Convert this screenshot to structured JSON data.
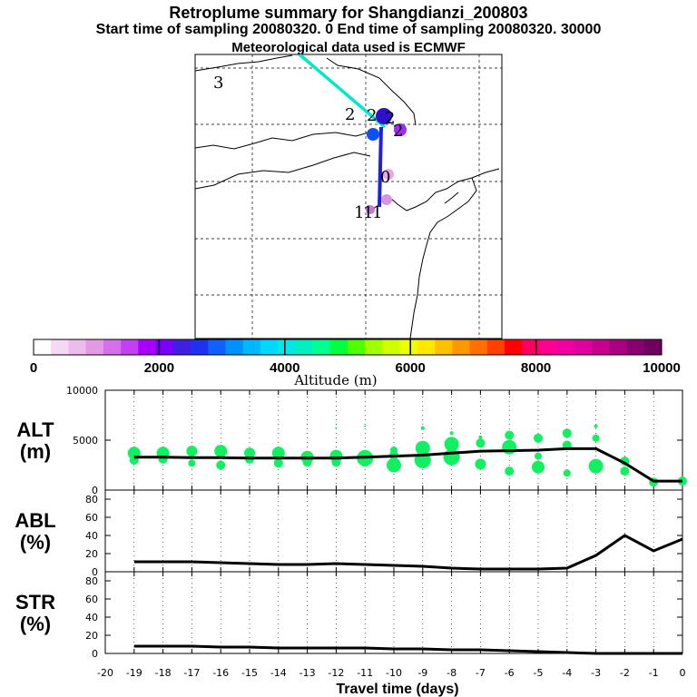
{
  "header": {
    "title": "Retroplume summary for Shangdianzi_200803",
    "sampling_line": "Start time of sampling 20080320.     0     End time of sampling 20080320. 30000",
    "met_line": "Meteorological data used is ECMWF"
  },
  "map": {
    "labels": [
      {
        "text": "3",
        "kind": "age"
      },
      {
        "text": "2",
        "kind": "age"
      },
      {
        "text": "2",
        "kind": "age"
      },
      {
        "text": "2",
        "kind": "age"
      },
      {
        "text": "2",
        "kind": "age"
      },
      {
        "text": "0",
        "kind": "age"
      },
      {
        "text": "1",
        "kind": "age"
      },
      {
        "text": "1",
        "kind": "age"
      },
      {
        "text": "1",
        "kind": "age"
      }
    ]
  },
  "colorbar": {
    "label": "Altitude (m)",
    "ticks": [
      "0",
      "2000",
      "4000",
      "6000",
      "8000",
      "10000"
    ],
    "colors": [
      "#ffffff",
      "#f5d8f5",
      "#eebbee",
      "#e399e3",
      "#d670e8",
      "#c140f0",
      "#a700ff",
      "#7800ff",
      "#4020e0",
      "#2030f0",
      "#1060ff",
      "#0090ff",
      "#00b8ff",
      "#00d8ff",
      "#00e8e8",
      "#00f0c0",
      "#00ff90",
      "#00ff40",
      "#50ff00",
      "#a0ff00",
      "#d0ff00",
      "#f0ff00",
      "#ffe800",
      "#ffc000",
      "#ff9800",
      "#ff7000",
      "#ff4000",
      "#ff0000",
      "#ff0060",
      "#ff0090",
      "#f000a0",
      "#e000a0",
      "#c80090",
      "#a80080",
      "#880070",
      "#700060"
    ]
  },
  "chart_data": [
    {
      "type": "line",
      "title": "ALT (m)",
      "ylabel": "ALT (m)",
      "xlabel": "Travel time (days)",
      "ylim": [
        0,
        10000
      ],
      "yticks": [
        "0",
        "5000",
        "10000"
      ],
      "x": [
        -19,
        -18,
        -17,
        -16,
        -15,
        -14,
        -13,
        -12,
        -11,
        -10,
        -9,
        -8,
        -7,
        -6,
        -5,
        -4,
        -3,
        -2,
        -1,
        0
      ],
      "series": [
        {
          "name": "mean altitude",
          "values": [
            3300,
            3300,
            3250,
            3250,
            3200,
            3200,
            3200,
            3200,
            3300,
            3400,
            3500,
            3700,
            3900,
            3950,
            4000,
            4150,
            4150,
            2700,
            900,
            900
          ]
        }
      ],
      "scatter": {
        "name": "altitude spread",
        "x": [
          -19,
          -19,
          -18,
          -18,
          -17,
          -17,
          -16,
          -16,
          -15,
          -15,
          -14,
          -14,
          -13,
          -13,
          -12,
          -12,
          -12,
          -11,
          -11,
          -11,
          -10,
          -10,
          -10,
          -9,
          -9,
          -9,
          -8,
          -8,
          -8,
          -7,
          -7,
          -7,
          -6,
          -6,
          -6,
          -5,
          -5,
          -5,
          -4,
          -4,
          -4,
          -3,
          -3,
          -3,
          -2,
          -2,
          -2,
          -1,
          0
        ],
        "y": [
          3700,
          3000,
          3700,
          3100,
          3900,
          2700,
          3900,
          2500,
          3700,
          3100,
          3700,
          2700,
          3300,
          2800,
          6200,
          3400,
          2800,
          6400,
          3200,
          2900,
          4000,
          3500,
          2500,
          6200,
          4200,
          3000,
          5700,
          4600,
          3300,
          5300,
          4700,
          2600,
          5500,
          4300,
          1900,
          5200,
          3400,
          2300,
          5700,
          4500,
          1700,
          6400,
          5200,
          2400,
          3200,
          1900,
          2900,
          800,
          900
        ],
        "size": [
          7,
          5,
          7,
          5,
          6,
          4,
          7,
          5,
          6,
          5,
          7,
          5,
          7,
          5,
          1,
          7,
          5,
          1,
          9,
          6,
          4,
          5,
          8,
          2,
          8,
          9,
          2,
          8,
          9,
          2,
          5,
          6,
          5,
          8,
          5,
          5,
          4,
          7,
          5,
          5,
          4,
          2,
          4,
          8,
          1,
          5,
          5,
          5,
          5
        ]
      },
      "xlim": [
        -20,
        0
      ]
    },
    {
      "type": "line",
      "title": "ABL (%)",
      "ylabel": "ABL (%)",
      "ylim": [
        0,
        90
      ],
      "yticks": [
        "0",
        "20",
        "40",
        "60",
        "80"
      ],
      "x": [
        -19,
        -18,
        -17,
        -16,
        -15,
        -14,
        -13,
        -12,
        -11,
        -10,
        -9,
        -8,
        -7,
        -6,
        -5,
        -4,
        -3,
        -2,
        -1,
        0
      ],
      "series": [
        {
          "name": "ABL fraction",
          "values": [
            11,
            11,
            11,
            10,
            9,
            8,
            8,
            9,
            8,
            7,
            6,
            4,
            3,
            3,
            3,
            4,
            18,
            40,
            23,
            36
          ]
        }
      ],
      "xlim": [
        -20,
        0
      ]
    },
    {
      "type": "line",
      "title": "STR (%)",
      "ylabel": "STR (%)",
      "xlabel": "Travel time (days)",
      "ylim": [
        0,
        90
      ],
      "yticks": [
        "0",
        "20",
        "40",
        "60",
        "80"
      ],
      "x": [
        -19,
        -18,
        -17,
        -16,
        -15,
        -14,
        -13,
        -12,
        -11,
        -10,
        -9,
        -8,
        -7,
        -6,
        -5,
        -4,
        -3,
        -2,
        -1,
        0
      ],
      "series": [
        {
          "name": "stratospheric fraction",
          "values": [
            8,
            8,
            8,
            7,
            7,
            6,
            6,
            6,
            6,
            5,
            5,
            4,
            4,
            3,
            2,
            1,
            0,
            0,
            0,
            0
          ]
        }
      ],
      "xticks": [
        "-20",
        "-19",
        "-18",
        "-17",
        "-16",
        "-15",
        "-14",
        "-13",
        "-12",
        "-11",
        "-10",
        "-9",
        "-8",
        "-7",
        "-6",
        "-5",
        "-4",
        "-3",
        "-2",
        "-1",
        "0"
      ],
      "xlim": [
        -20,
        0
      ]
    }
  ],
  "panel_labels": {
    "alt": [
      "ALT",
      "(m)"
    ],
    "abl": [
      "ABL",
      "(%)"
    ],
    "str": [
      "STR",
      "(%)"
    ]
  }
}
